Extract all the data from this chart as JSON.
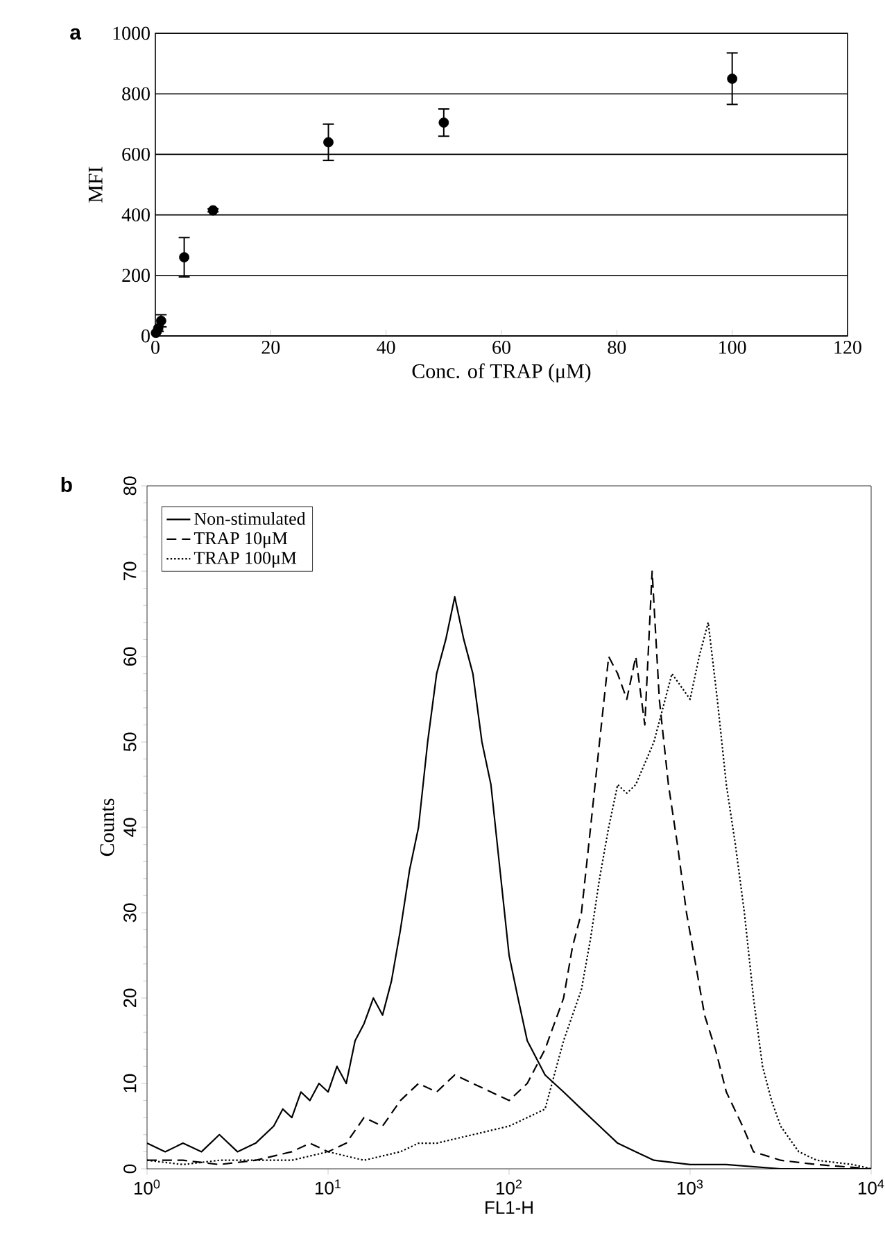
{
  "chart_data": [
    {
      "type": "scatter",
      "title": "a",
      "xlabel": "Conc. of TRAP (μM)",
      "ylabel": "MFI",
      "x": [
        0.1,
        0.5,
        1,
        5,
        10,
        30,
        50,
        100
      ],
      "values": [
        10,
        25,
        50,
        260,
        415,
        640,
        705,
        850
      ],
      "errors": [
        null,
        10,
        20,
        65,
        5,
        60,
        45,
        85
      ],
      "color": "#000000",
      "marker": "circle",
      "xlim": [
        0,
        120
      ],
      "xticks": [
        0,
        20,
        40,
        60,
        80,
        100,
        120
      ],
      "ylim": [
        0,
        1000
      ],
      "yticks": [
        0,
        200,
        400,
        600,
        800,
        1000
      ],
      "grid": "y",
      "legend": false
    },
    {
      "type": "line",
      "title": "b",
      "xlabel": "FL1-H",
      "ylabel": "Counts",
      "log": "x",
      "xlim": [
        1,
        10000
      ],
      "xticks": [
        {
          "value": 1,
          "label": "10$^{0}$"
        },
        {
          "value": 10,
          "label": "10$^{1}$"
        },
        {
          "value": 100,
          "label": "10$^{2}$"
        },
        {
          "value": 1000,
          "label": "10$^{3}$"
        },
        {
          "value": 10000,
          "label": "10$^{4}$"
        }
      ],
      "ylim": [
        0,
        80
      ],
      "yticks": [
        0,
        10,
        20,
        30,
        40,
        50,
        60,
        70,
        80
      ],
      "legend": "top left",
      "grid": false,
      "series": [
        {
          "name": "Non-stimulated",
          "color": "#000000",
          "line_style": "solid",
          "x": [
            1,
            1.26,
            1.58,
            2.0,
            2.51,
            3.16,
            3.98,
            5.01,
            5.62,
            6.31,
            7.08,
            7.94,
            8.91,
            10,
            11.2,
            12.6,
            14.1,
            15.8,
            17.8,
            20,
            22.4,
            25.1,
            28.2,
            31.6,
            35.5,
            39.8,
            44.7,
            50.1,
            56.2,
            63.1,
            70.8,
            79.4,
            89.1,
            100,
            112,
            126,
            158,
            200,
            251,
            316,
            398,
            501,
            631,
            1000,
            1585,
            3162,
            10000
          ],
          "values": [
            3,
            2,
            3,
            2,
            4,
            2,
            3,
            5,
            7,
            6,
            9,
            8,
            10,
            9,
            12,
            10,
            15,
            17,
            20,
            18,
            22,
            28,
            35,
            40,
            50,
            58,
            62,
            67,
            62,
            58,
            50,
            45,
            35,
            25,
            20,
            15,
            11,
            9,
            7,
            5,
            3,
            2,
            1,
            0.5,
            0.5,
            0,
            0
          ]
        },
        {
          "name": "TRAP 10μM",
          "color": "#000000",
          "line_style": "dashed",
          "x": [
            1,
            1.58,
            2.51,
            3.98,
            6.31,
            7.94,
            10,
            12.6,
            15.8,
            20,
            25.1,
            31.6,
            39.8,
            50.1,
            63.1,
            79.4,
            100,
            126,
            158,
            200,
            224,
            251,
            282,
            316,
            355,
            398,
            447,
            501,
            562,
            617,
            676,
            759,
            851,
            955,
            1072,
            1202,
            1380,
            1585,
            1950,
            2239,
            3162,
            5012,
            10000
          ],
          "values": [
            1,
            1,
            0.5,
            1,
            2,
            3,
            2,
            3,
            6,
            5,
            8,
            10,
            9,
            11,
            10,
            9,
            8,
            10,
            14,
            20,
            26,
            30,
            40,
            50,
            60,
            58,
            55,
            60,
            52,
            70,
            55,
            45,
            38,
            30,
            24,
            18,
            14,
            9,
            5,
            2,
            1,
            0.5,
            0
          ]
        },
        {
          "name": "TRAP 100μM",
          "color": "#000000",
          "line_style": "dotted",
          "x": [
            1,
            1.58,
            2.51,
            3.98,
            6.31,
            10,
            15.8,
            25.1,
            31.6,
            39.8,
            63.1,
            100,
            126,
            158,
            200,
            251,
            282,
            316,
            355,
            398,
            447,
            501,
            631,
            794,
            1000,
            1122,
            1259,
            1413,
            1585,
            1778,
            1995,
            2239,
            2512,
            2818,
            3162,
            3981,
            5012,
            7943,
            10000
          ],
          "values": [
            1,
            0.5,
            1,
            1,
            1,
            2,
            1,
            2,
            3,
            3,
            4,
            5,
            6,
            7,
            15,
            21,
            27,
            34,
            40,
            45,
            44,
            45,
            50,
            58,
            55,
            60,
            64,
            55,
            45,
            38,
            30,
            20,
            12,
            8,
            5,
            2,
            1,
            0.5,
            0
          ]
        }
      ]
    }
  ]
}
